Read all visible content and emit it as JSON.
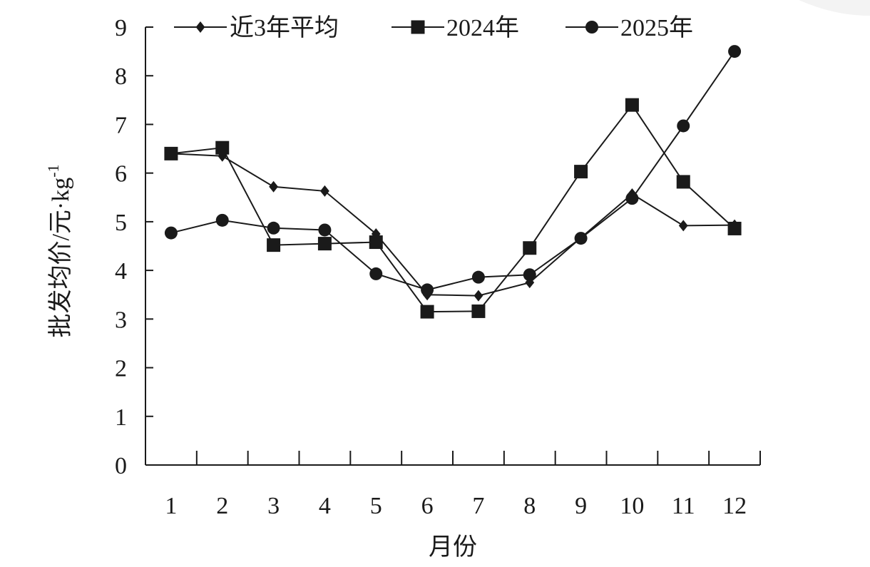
{
  "chart_data": {
    "type": "line",
    "title": "",
    "xlabel": "月份",
    "ylabel": "批发均价/元·kg",
    "ylabel_sup": "-1",
    "categories": [
      "1",
      "2",
      "3",
      "4",
      "5",
      "6",
      "7",
      "8",
      "9",
      "10",
      "11",
      "12"
    ],
    "yticks": [
      "0",
      "1",
      "2",
      "3",
      "4",
      "5",
      "6",
      "7",
      "8",
      "9"
    ],
    "ylim": [
      0,
      9
    ],
    "legend_position": "top",
    "grid": false,
    "series": [
      {
        "name": "近3年平均",
        "marker": "diamond",
        "values": [
          6.4,
          6.35,
          5.72,
          5.63,
          4.75,
          3.5,
          3.48,
          3.75,
          4.67,
          5.57,
          4.92,
          4.93
        ]
      },
      {
        "name": "2024年",
        "marker": "square",
        "values": [
          6.4,
          6.52,
          4.52,
          4.55,
          4.58,
          3.15,
          3.16,
          4.46,
          6.03,
          7.4,
          5.82,
          4.86
        ]
      },
      {
        "name": "2025年",
        "marker": "circle",
        "values": [
          4.77,
          5.03,
          4.87,
          4.83,
          3.93,
          3.6,
          3.86,
          3.91,
          4.66,
          5.48,
          6.97,
          8.5
        ]
      }
    ]
  }
}
